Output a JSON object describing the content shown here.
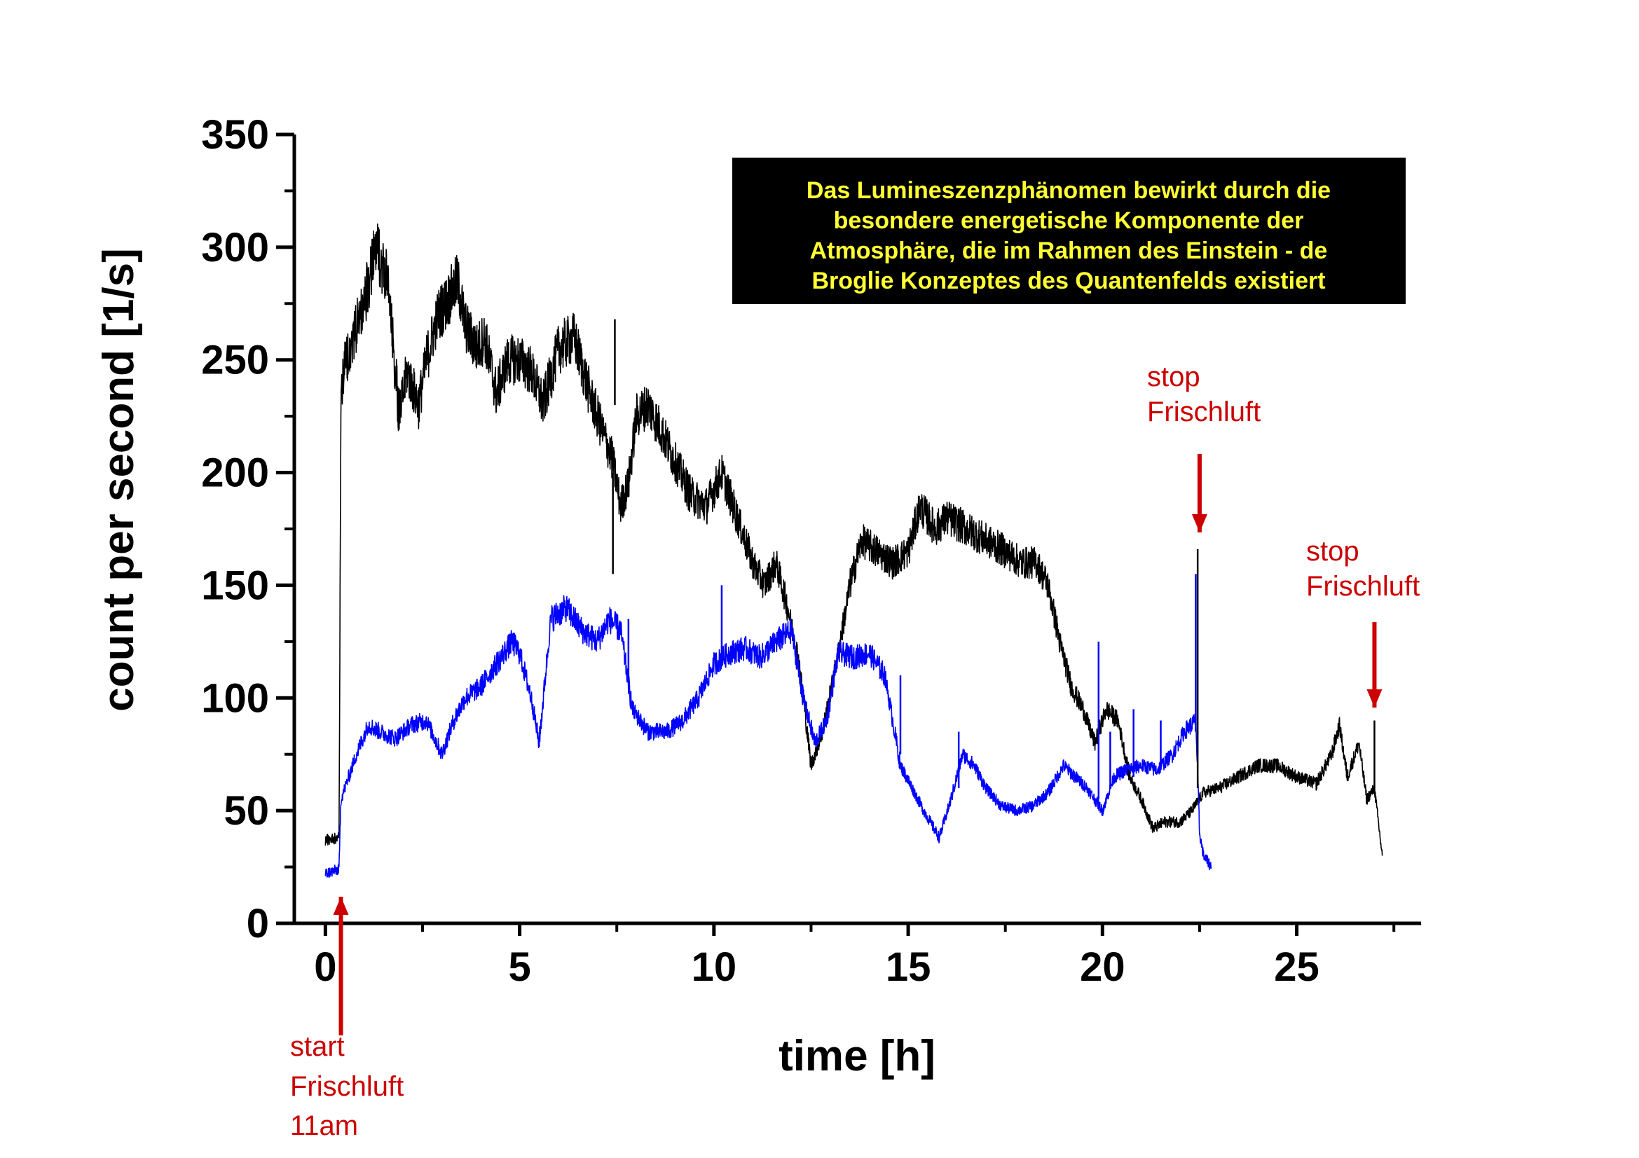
{
  "chart_data": {
    "type": "line",
    "xlabel": "time [h]",
    "ylabel": "count per second [1/s]",
    "xlim": [
      -0.8,
      28.2
    ],
    "ylim": [
      0,
      350
    ],
    "xticks": [
      0,
      5,
      10,
      15,
      20,
      25
    ],
    "yticks": [
      0,
      50,
      100,
      150,
      200,
      250,
      300,
      350
    ],
    "grid": false,
    "legend": "none",
    "series": [
      {
        "color": "#000000",
        "x": [
          0,
          0.35,
          0.4,
          0.45,
          0.8,
          1.0,
          1.3,
          1.6,
          1.9,
          2.1,
          2.4,
          2.6,
          2.9,
          3.1,
          3.4,
          3.6,
          3.9,
          4.1,
          4.4,
          4.7,
          5.0,
          5.3,
          5.6,
          6.0,
          6.4,
          6.8,
          7.1,
          7.4,
          7.6,
          7.8,
          8.0,
          8.3,
          8.6,
          9.0,
          9.4,
          9.8,
          10.2,
          10.6,
          11.0,
          11.3,
          11.6,
          11.9,
          12.2,
          12.5,
          12.8,
          13.2,
          13.5,
          13.8,
          14.2,
          14.6,
          15.0,
          15.3,
          15.7,
          16.0,
          16.5,
          17.0,
          17.5,
          17.9,
          18.3,
          18.6,
          18.9,
          19.2,
          19.5,
          19.8,
          20.1,
          20.4,
          20.7,
          21.0,
          21.3,
          21.6,
          22.0,
          22.3,
          22.6,
          23.0,
          23.5,
          24.0,
          24.5,
          25.0,
          25.5,
          25.9,
          26.1,
          26.3,
          26.6,
          26.8,
          27.0,
          27.2
        ],
        "y": [
          37,
          38,
          230,
          245,
          265,
          275,
          300,
          285,
          225,
          245,
          230,
          250,
          270,
          275,
          285,
          265,
          255,
          260,
          235,
          250,
          250,
          245,
          230,
          255,
          260,
          235,
          220,
          205,
          185,
          195,
          225,
          230,
          220,
          205,
          190,
          185,
          200,
          180,
          160,
          150,
          160,
          140,
          115,
          70,
          85,
          120,
          150,
          170,
          165,
          160,
          165,
          185,
          175,
          180,
          175,
          170,
          165,
          160,
          160,
          150,
          125,
          105,
          95,
          80,
          95,
          90,
          65,
          55,
          42,
          45,
          45,
          50,
          58,
          60,
          65,
          70,
          70,
          65,
          62,
          75,
          88,
          65,
          80,
          55,
          60,
          30
        ]
      },
      {
        "color": "#0000ff",
        "x": [
          0,
          0.35,
          0.4,
          0.6,
          0.8,
          1.1,
          1.4,
          1.8,
          2.2,
          2.6,
          3.0,
          3.3,
          3.6,
          4.0,
          4.4,
          4.8,
          5.0,
          5.3,
          5.5,
          5.8,
          6.2,
          6.6,
          7.0,
          7.3,
          7.6,
          7.9,
          8.3,
          8.8,
          9.2,
          9.6,
          10.0,
          10.4,
          10.8,
          11.2,
          11.6,
          12.0,
          12.3,
          12.6,
          12.9,
          13.2,
          13.6,
          14.0,
          14.4,
          14.8,
          15.1,
          15.4,
          15.8,
          16.1,
          16.4,
          16.7,
          17.0,
          17.4,
          17.8,
          18.2,
          18.6,
          19.0,
          19.3,
          19.6,
          20.0,
          20.3,
          20.6,
          21.0,
          21.4,
          21.8,
          22.1,
          22.4,
          22.5,
          22.6,
          22.8
        ],
        "y": [
          22,
          24,
          55,
          65,
          75,
          88,
          85,
          82,
          88,
          90,
          75,
          90,
          100,
          105,
          115,
          125,
          120,
          100,
          80,
          135,
          140,
          130,
          125,
          135,
          130,
          95,
          85,
          85,
          90,
          100,
          115,
          120,
          122,
          118,
          125,
          130,
          100,
          80,
          90,
          120,
          118,
          120,
          110,
          70,
          60,
          50,
          38,
          55,
          75,
          70,
          60,
          52,
          50,
          52,
          58,
          70,
          65,
          60,
          50,
          65,
          68,
          70,
          68,
          75,
          85,
          90,
          40,
          30,
          25
        ]
      }
    ],
    "spikes": [
      {
        "series": 0,
        "x": 7.45,
        "from": 230,
        "to": 268
      },
      {
        "series": 0,
        "x": 7.4,
        "from": 200,
        "to": 155
      },
      {
        "series": 0,
        "x": 22.45,
        "from": 60,
        "to": 166
      },
      {
        "series": 0,
        "x": 27.0,
        "from": 58,
        "to": 90
      },
      {
        "series": 1,
        "x": 7.8,
        "from": 110,
        "to": 135
      },
      {
        "series": 1,
        "x": 10.2,
        "from": 118,
        "to": 150
      },
      {
        "series": 1,
        "x": 14.8,
        "from": 75,
        "to": 110
      },
      {
        "series": 1,
        "x": 16.3,
        "from": 60,
        "to": 85
      },
      {
        "series": 1,
        "x": 19.9,
        "from": 55,
        "to": 125
      },
      {
        "series": 1,
        "x": 20.2,
        "from": 60,
        "to": 85
      },
      {
        "series": 1,
        "x": 20.8,
        "from": 65,
        "to": 95
      },
      {
        "series": 1,
        "x": 21.5,
        "from": 68,
        "to": 90
      },
      {
        "series": 1,
        "x": 22.4,
        "from": 85,
        "to": 155
      }
    ],
    "annotations": [
      {
        "lines": [
          "start",
          "Frischluft",
          "11am"
        ],
        "arrow_x": 0.4,
        "arrow_direction": "up"
      },
      {
        "lines": [
          "stop",
          "Frischluft"
        ],
        "arrow_x": 22.5,
        "arrow_direction": "down"
      },
      {
        "lines": [
          "stop",
          "Frischluft"
        ],
        "arrow_x": 27.0,
        "arrow_direction": "down"
      }
    ],
    "text_box": {
      "lines": [
        "Das Lumineszenzphänomen bewirkt durch die",
        "besondere energetische Komponente der",
        "Atmosphäre, die im Rahmen des Einstein - de",
        "Broglie Konzeptes des Quantenfelds existiert"
      ],
      "background": "#000000",
      "text_color": "#ffff33"
    },
    "annotation_color": "#cc0000"
  }
}
